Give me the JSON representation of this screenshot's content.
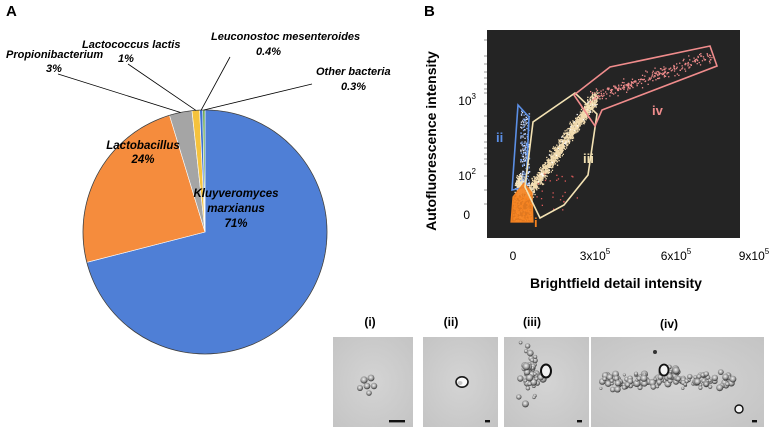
{
  "panel_a": {
    "letter": "A"
  },
  "panel_b": {
    "letter": "B"
  },
  "chart_data": [
    {
      "type": "pie",
      "title": "",
      "slices": [
        {
          "label": "Kluyveromyces marxianus",
          "label_line1": "Kluyveromyces",
          "label_line2": "marxianus",
          "pct_label": "71%",
          "value": 71.0,
          "color": "#4f7fd6"
        },
        {
          "label": "Lactobacillus",
          "pct_label": "24%",
          "value": 24.3,
          "color": "#f58c3d"
        },
        {
          "label": "Propionibacterium",
          "pct_label": "3%",
          "value": 3.0,
          "color": "#a5a5a5"
        },
        {
          "label": "Lactococcus lactis",
          "pct_label": "1%",
          "value": 1.0,
          "color": "#f5c23d"
        },
        {
          "label": "Leuconostoc mesenteroides",
          "pct_label": "0.4%",
          "value": 0.4,
          "color": "#3d6fcf"
        },
        {
          "label": "Other bacteria",
          "pct_label": "0.3%",
          "value": 0.3,
          "color": "#6aa84f"
        }
      ]
    },
    {
      "type": "scatter",
      "xlabel": "Brightfield detail intensity",
      "ylabel": "Autofluorescence intensity",
      "x_ticks": [
        {
          "label": "0",
          "value": 0
        },
        {
          "label": "3x10",
          "exp": "5",
          "value": 300000
        },
        {
          "label": "6x10",
          "exp": "5",
          "value": 600000
        },
        {
          "label": "9x10",
          "exp": "5",
          "value": 900000
        }
      ],
      "y_ticks": [
        {
          "label": "0",
          "exp": ""
        },
        {
          "label": "10",
          "exp": "2"
        },
        {
          "label": "10",
          "exp": "3"
        }
      ],
      "gates": [
        {
          "id": "i",
          "label": "i",
          "color": "#f58220"
        },
        {
          "id": "ii",
          "label": "ii",
          "color": "#5b8fe6"
        },
        {
          "id": "iii",
          "label": "iii",
          "color": "#f3e2b3"
        },
        {
          "id": "iv",
          "label": "iv",
          "color": "#f08c8c"
        }
      ]
    }
  ],
  "images": [
    {
      "caption": "(i)"
    },
    {
      "caption": "(ii)"
    },
    {
      "caption": "(iii)"
    },
    {
      "caption": "(iv)"
    }
  ]
}
